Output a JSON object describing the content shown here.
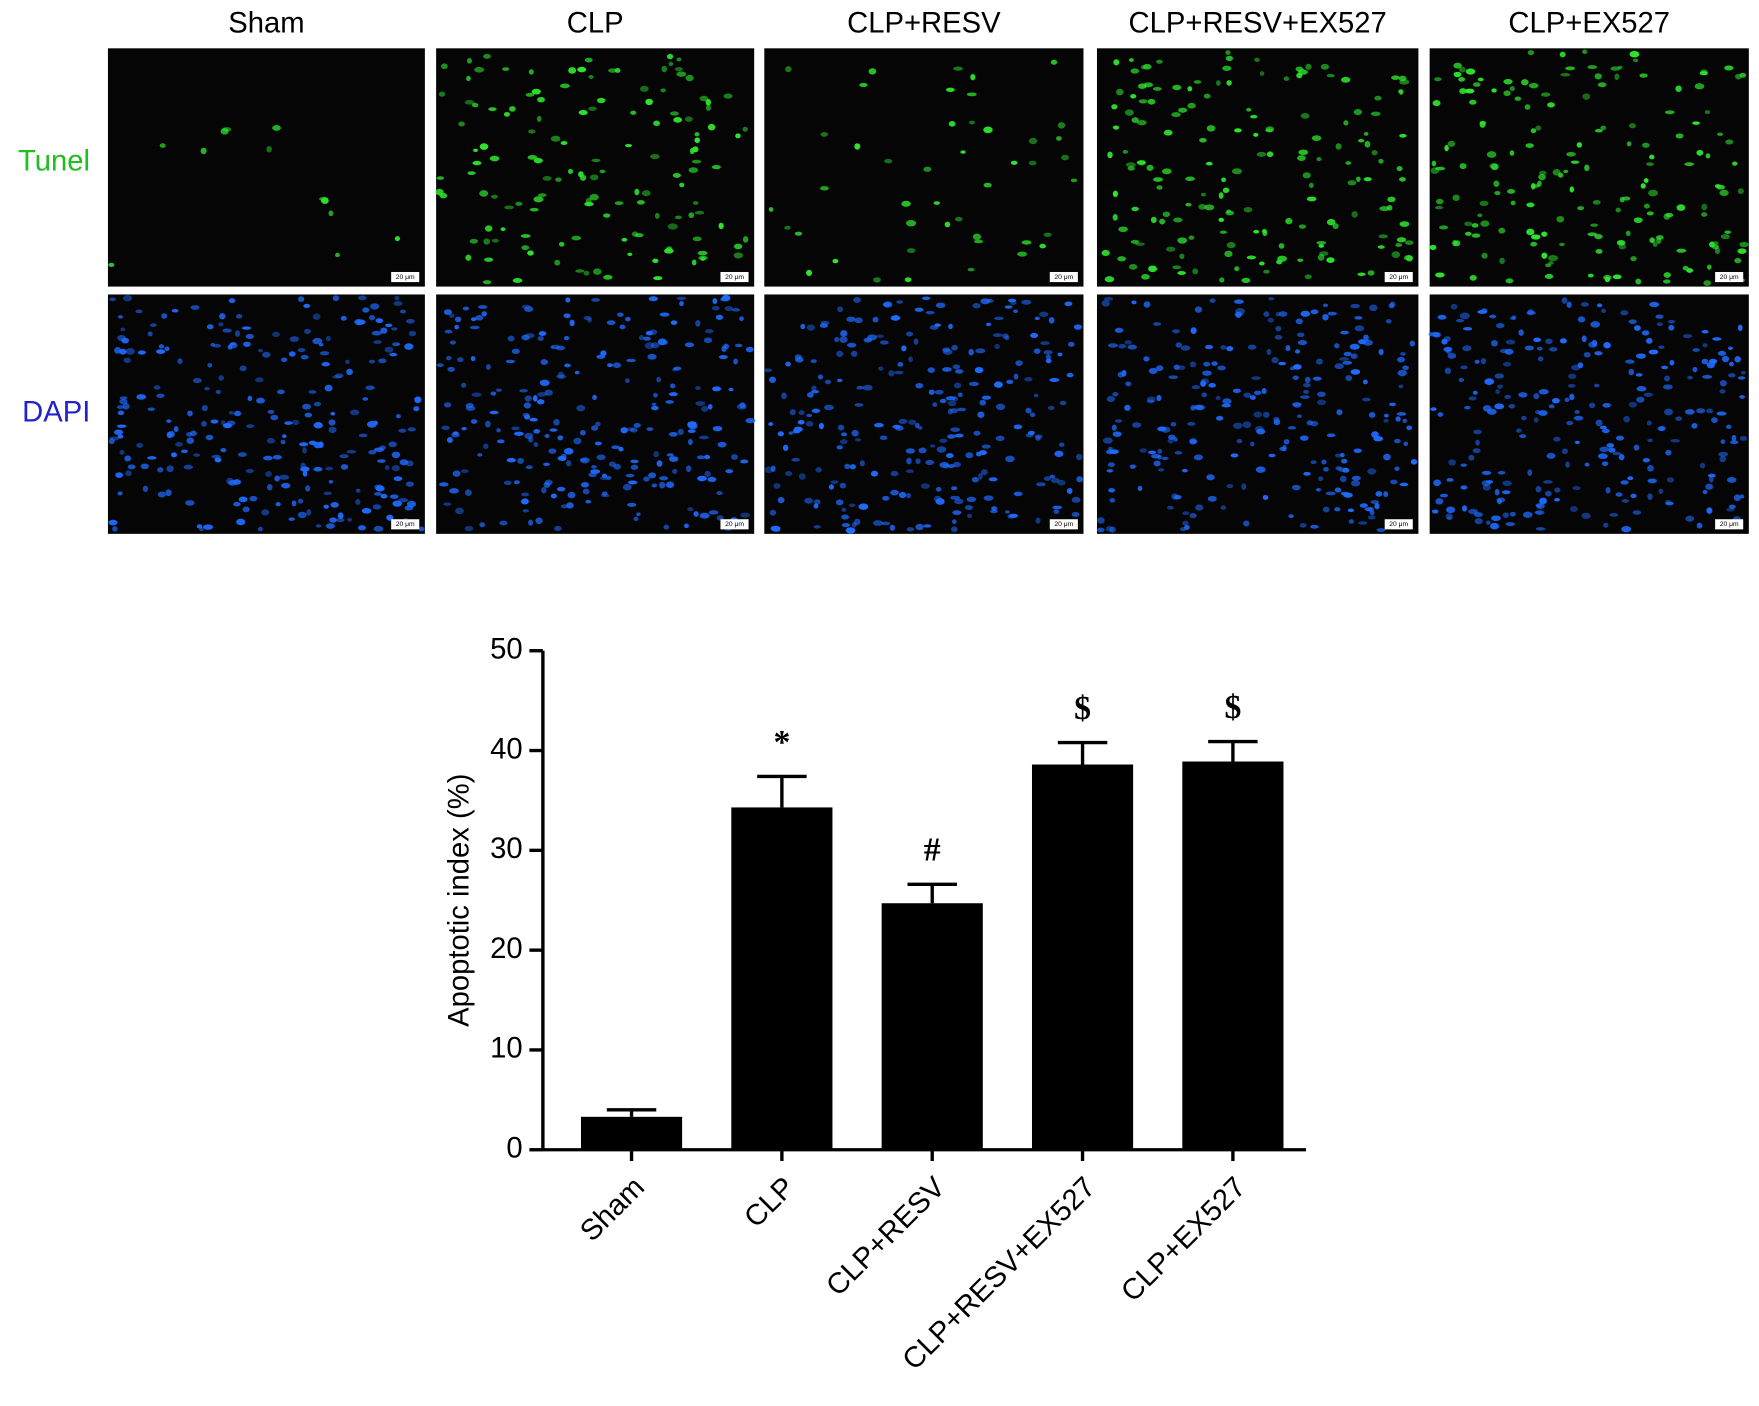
{
  "panel_titles": [
    "Sham",
    "CLP",
    "CLP+RESV",
    "CLP+RESV+EX527",
    "CLP+EX527"
  ],
  "row_labels": [
    "Tunel",
    "DAPI"
  ],
  "scale_bar": "20 μm",
  "chart_data": {
    "type": "bar",
    "y_label": "Apoptotic index (%)",
    "categories": [
      "Sham",
      "CLP",
      "CLP+RESV",
      "CLP+RESV+EX527",
      "CLP+EX527"
    ],
    "values": [
      3.3,
      34.3,
      24.7,
      38.6,
      38.9
    ],
    "errors": [
      0.7,
      3.1,
      1.9,
      2.2,
      2.0
    ],
    "annotations": [
      null,
      "*",
      "#",
      "$",
      "$"
    ],
    "color": "#000000",
    "ylim": [
      0,
      50
    ],
    "yticks": [
      0,
      10,
      20,
      30,
      40,
      50
    ]
  }
}
